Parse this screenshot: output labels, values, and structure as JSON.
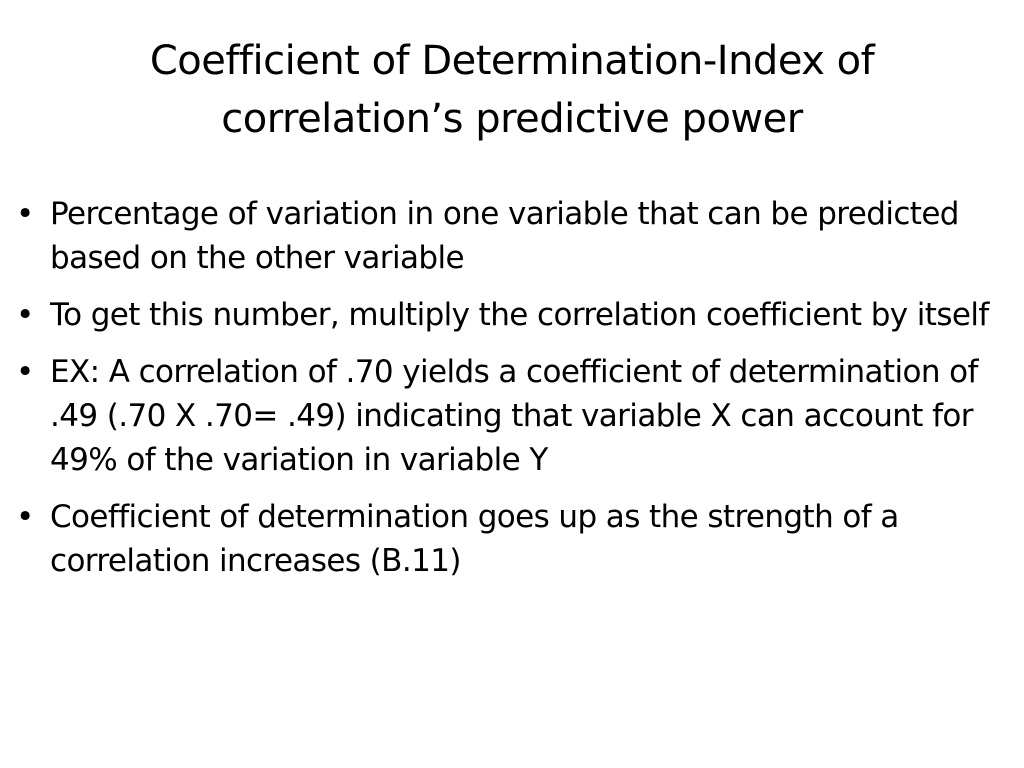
{
  "title": "Coefficient of Determination-Index of correlation’s predictive power",
  "bullets": [
    "Percentage of variation in one variable that can be predicted based on the other variable",
    "To get this number, multiply the correlation coefficient by itself",
    "EX: A correlation of .70 yields a coefficient of determination of .49 (.70 X .70= .49) indicating that variable X can account for 49% of the variation in variable Y",
    "Coefficient of determination goes up as the strength of a correlation increases (B.11)"
  ]
}
